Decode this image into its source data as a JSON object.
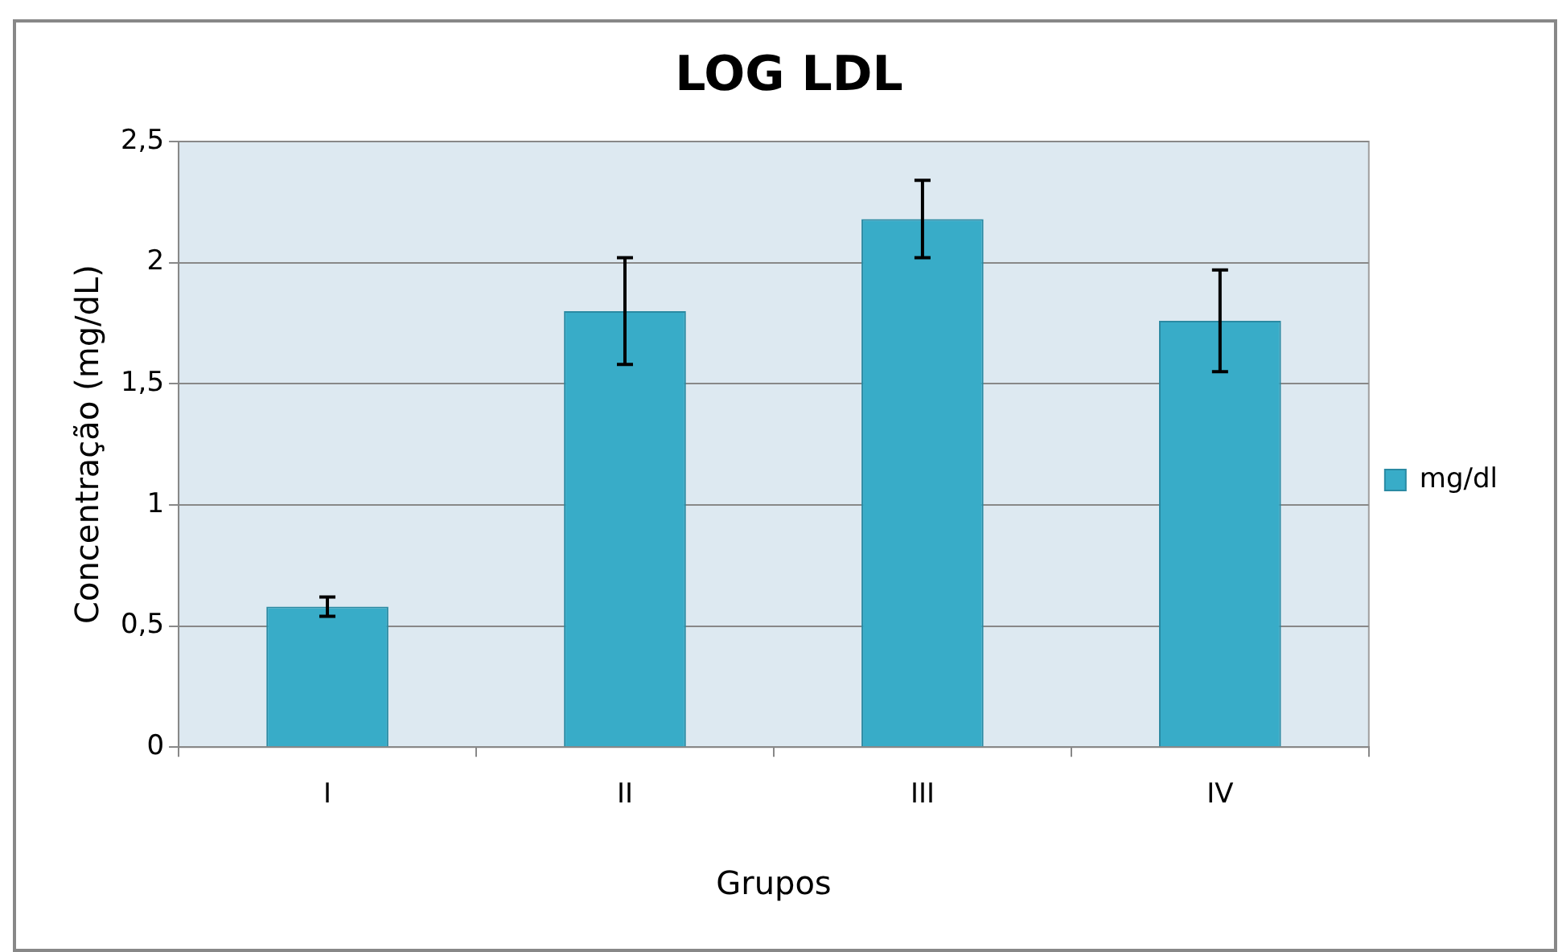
{
  "chart_data": {
    "type": "bar",
    "title": "LOG LDL",
    "xlabel": "Grupos",
    "ylabel": "Concentração (mg/dL)",
    "categories": [
      "I",
      "II",
      "III",
      "IV"
    ],
    "series": [
      {
        "name": "mg/dl",
        "color": "#38acc8",
        "values": [
          0.58,
          1.8,
          2.18,
          1.76
        ],
        "errors": [
          0.04,
          0.22,
          0.16,
          0.21
        ]
      }
    ],
    "ylim": [
      0,
      2.5
    ],
    "yticks": [
      0,
      {
        "value": 0.5,
        "label": "0,5"
      },
      1,
      {
        "value": 1.5,
        "label": "1,5"
      },
      2,
      {
        "value": 2.5,
        "label": "2,5"
      }
    ],
    "grid": "y",
    "legend": "right"
  }
}
